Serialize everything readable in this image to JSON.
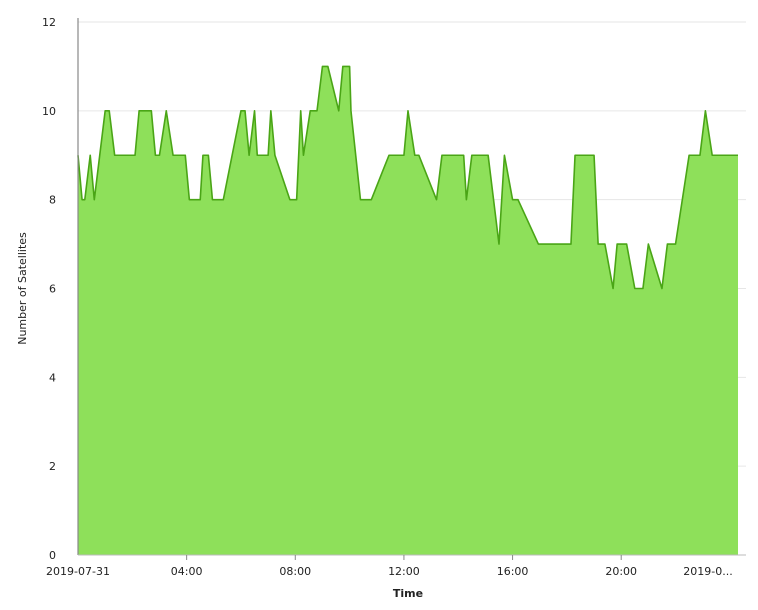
{
  "chart_data": {
    "type": "area",
    "title": "",
    "xlabel": "Time",
    "ylabel": "Number of Satellites",
    "ylim": [
      0,
      12
    ],
    "yticks": [
      0,
      2,
      4,
      6,
      8,
      10,
      12
    ],
    "x_tick_labels": [
      "2019-07-31",
      "04:00",
      "08:00",
      "12:00",
      "16:00",
      "20:00",
      "2019-0..."
    ],
    "x_tick_hours": [
      0,
      4,
      8,
      12,
      16,
      20,
      24
    ],
    "grid": true,
    "series": [
      {
        "color": "#8ee05a",
        "line_color": "#4aa516",
        "x_hours": [
          0.0,
          0.15,
          0.25,
          0.45,
          0.6,
          0.8,
          1.0,
          1.15,
          1.35,
          2.1,
          2.25,
          2.7,
          2.85,
          3.0,
          3.25,
          3.5,
          3.95,
          4.1,
          4.5,
          4.6,
          4.8,
          4.95,
          5.05,
          5.35,
          6.0,
          6.15,
          6.3,
          6.5,
          6.6,
          7.0,
          7.1,
          7.25,
          7.8,
          8.05,
          8.2,
          8.3,
          8.55,
          8.8,
          9.0,
          9.2,
          9.6,
          9.75,
          10.0,
          10.05,
          10.4,
          10.65,
          10.8,
          11.45,
          12.0,
          12.15,
          12.4,
          12.55,
          13.2,
          13.4,
          13.55,
          14.2,
          14.3,
          14.5,
          15.1,
          15.5,
          15.7,
          16.0,
          16.2,
          16.95,
          17.2,
          17.45,
          17.7,
          18.15,
          18.3,
          19.0,
          19.15,
          19.4,
          19.7,
          19.85,
          20.2,
          20.5,
          20.6,
          20.8,
          21.0,
          21.5,
          21.7,
          22.0,
          22.5,
          22.65,
          22.9,
          23.1,
          23.35,
          23.6,
          24.0,
          24.3
        ],
        "values": [
          9,
          8,
          8,
          9,
          8,
          9,
          10,
          10,
          9,
          9,
          10,
          10,
          9,
          9,
          10,
          9,
          9,
          8,
          8,
          9,
          9,
          8,
          8,
          8,
          10,
          10,
          9,
          10,
          9,
          9,
          10,
          9,
          8,
          8,
          10,
          9,
          10,
          10,
          11,
          11,
          10,
          11,
          11,
          10,
          8,
          8,
          8,
          9,
          9,
          10,
          9,
          9,
          8,
          9,
          9,
          9,
          8,
          9,
          9,
          7,
          9,
          8,
          8,
          7,
          7,
          7,
          7,
          7,
          9,
          9,
          7,
          7,
          6,
          7,
          7,
          6,
          6,
          6,
          7,
          6,
          7,
          7,
          9,
          9,
          9,
          10,
          9,
          9,
          9,
          9
        ]
      }
    ]
  }
}
